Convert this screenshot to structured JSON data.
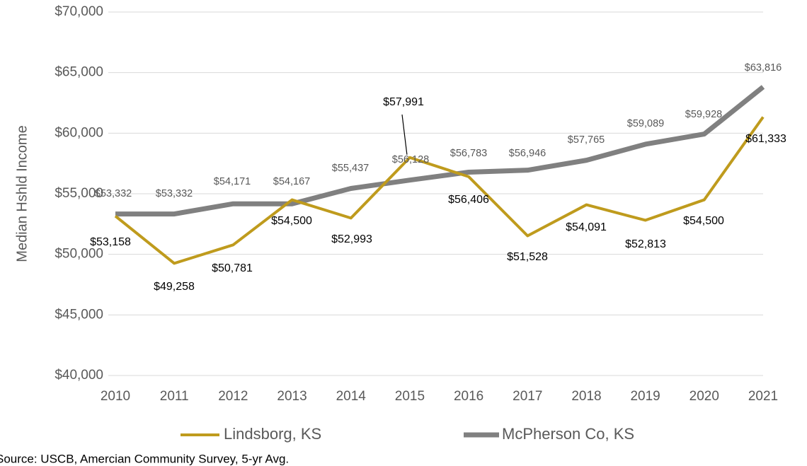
{
  "chart_data": {
    "type": "line",
    "y_label": "Median Hshld Income",
    "source": "Source: USCB, Amercian Community Survey, 5-yr Avg.",
    "categories": [
      "2010",
      "2011",
      "2012",
      "2013",
      "2014",
      "2015",
      "2016",
      "2017",
      "2018",
      "2019",
      "2020",
      "2021"
    ],
    "series": [
      {
        "name": "Lindsborg, KS",
        "color": "#bf9b1d",
        "values": [
          53158,
          49258,
          50781,
          54500,
          52993,
          57991,
          56406,
          51528,
          54091,
          52813,
          54500,
          61333
        ],
        "value_labels": [
          "$53,158",
          "$49,258",
          "$50,781",
          "$54,500",
          "$52,993",
          "$57,991",
          "$56,406",
          "$51,528",
          "$54,091",
          "$52,813",
          "$54,500",
          "$61,333"
        ]
      },
      {
        "name": "McPherson Co, KS",
        "color": "#808080",
        "values": [
          53332,
          53332,
          54171,
          54167,
          55437,
          56128,
          56783,
          56946,
          57765,
          59089,
          59928,
          63816
        ],
        "value_labels": [
          "$53,332",
          "$53,332",
          "$54,171",
          "$54,167",
          "$55,437",
          "$56,128",
          "$56,783",
          "$56,946",
          "$57,765",
          "$59,089",
          "$59,928",
          "$63,816"
        ]
      }
    ],
    "ylim": [
      40000,
      70000
    ],
    "yticks": [
      {
        "value": 40000,
        "label": "$40,000"
      },
      {
        "value": 45000,
        "label": "$45,000"
      },
      {
        "value": 50000,
        "label": "$50,000"
      },
      {
        "value": 55000,
        "label": "$55,000"
      },
      {
        "value": 60000,
        "label": "$60,000"
      },
      {
        "value": 65000,
        "label": "$65,000"
      },
      {
        "value": 70000,
        "label": "$70,000"
      }
    ],
    "grid": true,
    "legend": "bottom"
  }
}
